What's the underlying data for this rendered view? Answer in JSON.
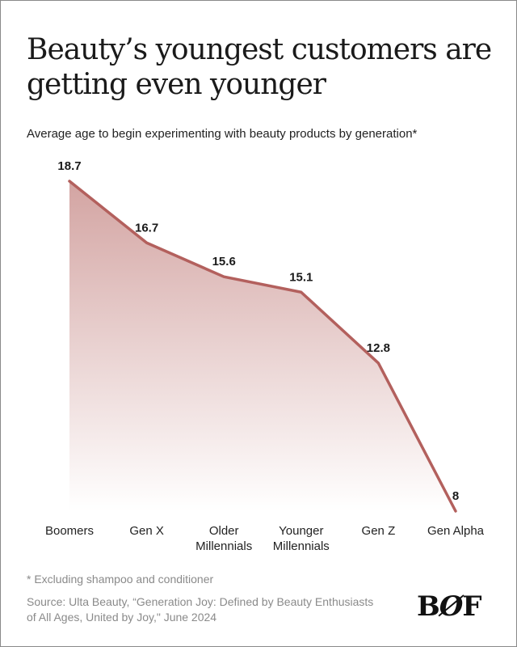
{
  "title": "Beauty’s youngest customers are getting even younger",
  "subtitle": "Average age to begin experimenting with beauty products by generation*",
  "chart_data": {
    "type": "area",
    "categories": [
      "Boomers",
      "Gen X",
      "Older Millennials",
      "Younger Millennials",
      "Gen Z",
      "Gen Alpha"
    ],
    "category_lines": [
      [
        "Boomers"
      ],
      [
        "Gen X"
      ],
      [
        "Older",
        "Millennials"
      ],
      [
        "Younger",
        "Millennials"
      ],
      [
        "Gen Z"
      ],
      [
        "Gen Alpha"
      ]
    ],
    "values": [
      18.7,
      16.7,
      15.6,
      15.1,
      12.8,
      8
    ],
    "labels": [
      "18.7",
      "16.7",
      "15.6",
      "15.1",
      "12.8",
      "8"
    ],
    "ylim": [
      8,
      18.7
    ],
    "xlabel": "",
    "ylabel": "",
    "grid": false,
    "line_color": "#b3605d",
    "fill_color": "#d3a4a2"
  },
  "footnote": "* Excluding shampoo and conditioner",
  "source": "Source:  Ulta Beauty, “Generation Joy: Defined by Beauty Enthusiasts of All Ages, United by Joy,\" June 2024",
  "logo": "BOF"
}
